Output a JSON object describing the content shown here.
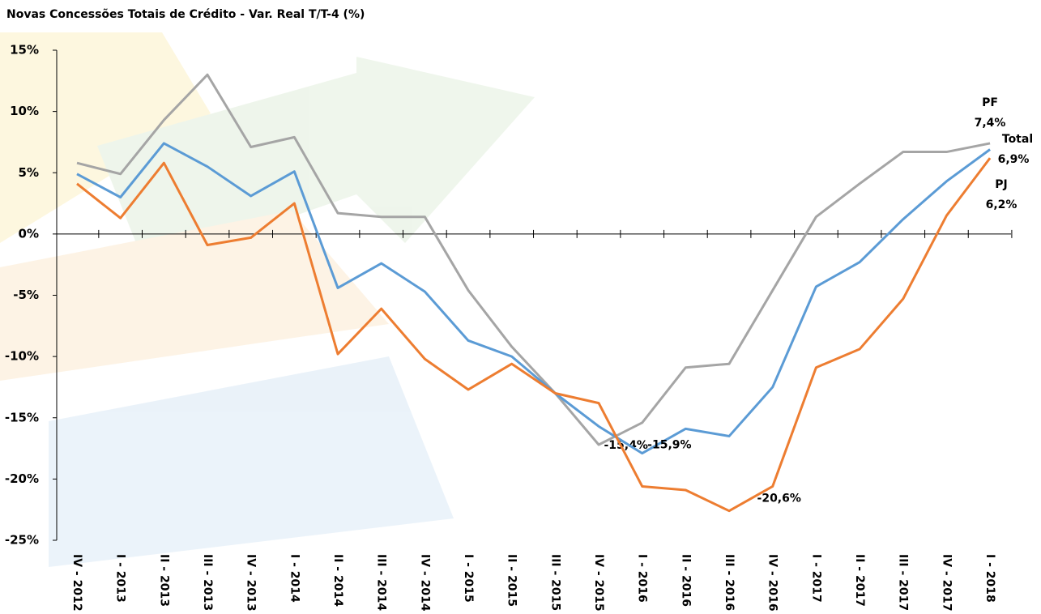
{
  "chart_data": {
    "type": "line",
    "title": "Novas Concessões Totais de Crédito - Var. Real T/T-4 (%)",
    "categories": [
      "IV - 2012",
      "I - 2013",
      "II - 2013",
      "III - 2013",
      "IV - 2013",
      "I - 2014",
      "II - 2014",
      "III - 2014",
      "IV - 2014",
      "I - 2015",
      "II - 2015",
      "III - 2015",
      "IV - 2015",
      "I - 2016",
      "II - 2016",
      "III - 2016",
      "IV - 2016",
      "I - 2017",
      "II - 2017",
      "III - 2017",
      "IV - 2017",
      "I - 2018"
    ],
    "series": [
      {
        "name": "PF",
        "color": "#a5a5a5",
        "values": [
          5.8,
          4.9,
          9.3,
          13.0,
          7.1,
          7.9,
          1.7,
          1.4,
          1.4,
          -4.6,
          -9.2,
          -13.0,
          -17.2,
          -15.4,
          -10.9,
          -10.6,
          -4.6,
          1.4,
          4.1,
          6.7,
          6.7,
          7.4
        ],
        "value_labels": [
          null,
          null,
          null,
          null,
          null,
          null,
          null,
          null,
          null,
          null,
          null,
          null,
          null,
          "-15,4%",
          null,
          null,
          null,
          null,
          null,
          null,
          null,
          "7,4%"
        ]
      },
      {
        "name": "Total",
        "color": "#5b9bd5",
        "values": [
          4.9,
          3.0,
          7.4,
          5.5,
          3.1,
          5.1,
          -4.4,
          -2.4,
          -4.7,
          -8.7,
          -10.0,
          -13.0,
          -15.7,
          -17.9,
          -15.9,
          -16.5,
          -12.5,
          -4.3,
          -2.3,
          1.2,
          4.3,
          6.9
        ],
        "value_labels": [
          null,
          null,
          null,
          null,
          null,
          null,
          null,
          null,
          null,
          null,
          null,
          null,
          null,
          null,
          "-15,9%",
          null,
          null,
          null,
          null,
          null,
          null,
          "6,9%"
        ]
      },
      {
        "name": "PJ",
        "color": "#ed7d31",
        "values": [
          4.1,
          1.3,
          5.8,
          -0.9,
          -0.3,
          2.5,
          -9.8,
          -6.1,
          -10.2,
          -12.7,
          -10.6,
          -13.0,
          -13.8,
          -20.6,
          -20.9,
          -22.6,
          -20.6,
          -10.9,
          -9.4,
          -5.3,
          1.5,
          6.2
        ],
        "value_labels": [
          null,
          null,
          null,
          null,
          null,
          null,
          null,
          null,
          null,
          null,
          null,
          null,
          null,
          null,
          null,
          null,
          "-20,6%",
          null,
          null,
          null,
          null,
          "6,2%"
        ]
      }
    ],
    "ylim": [
      -25,
      15
    ],
    "yticks": [
      {
        "value": -25,
        "label": "-25%"
      },
      {
        "value": -20,
        "label": "-20%"
      },
      {
        "value": -15,
        "label": "-15%"
      },
      {
        "value": -10,
        "label": "-10%"
      },
      {
        "value": -5,
        "label": "-5%"
      },
      {
        "value": 0,
        "label": "0%"
      },
      {
        "value": 5,
        "label": "5%"
      },
      {
        "value": 10,
        "label": "10%"
      },
      {
        "value": 15,
        "label": "15%"
      }
    ]
  }
}
